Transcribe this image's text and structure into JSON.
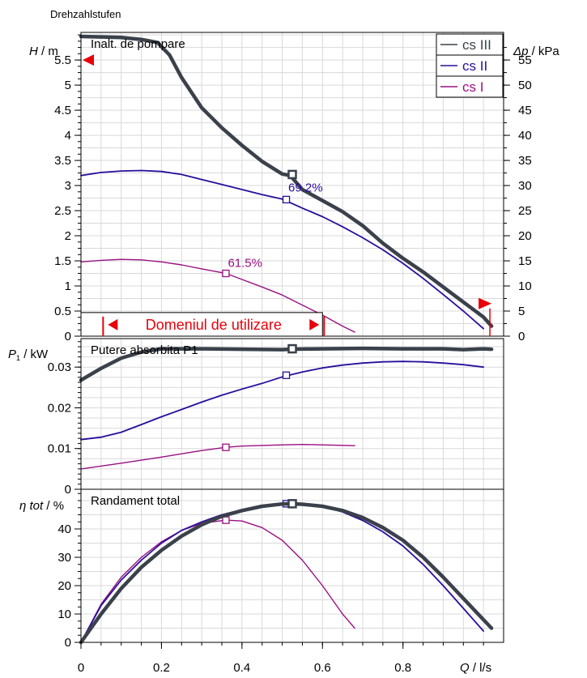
{
  "header": {
    "title": "Drehzahlstufen"
  },
  "colors": {
    "cs3": "#3a414b",
    "cs2": "#2a0e9c",
    "cs1": "#9a1080",
    "red": "#e8000b",
    "grid": "#d9d9d9",
    "axis": "#000000"
  },
  "chart_data": [
    {
      "type": "line",
      "title": "Inalt. de pompare",
      "ylabel_var": "H",
      "ylabel_unit": " / m",
      "y2label_var": "Δp",
      "y2label_unit": " / kPa",
      "xlim": [
        0,
        1.05
      ],
      "ylim": [
        0,
        6.05
      ],
      "y2lim": [
        0,
        60.5
      ],
      "yticks": [
        "0",
        "0.5",
        "1",
        "1.5",
        "2",
        "2.5",
        "3",
        "3.5",
        "4",
        "4.5",
        "5",
        "5.5"
      ],
      "y2ticks": [
        "0",
        "5",
        "10",
        "15",
        "20",
        "25",
        "30",
        "35",
        "40",
        "45",
        "50",
        "55"
      ],
      "legend": [
        "cs III",
        "cs II",
        "cs I"
      ],
      "legend_position": "top-right",
      "series": [
        {
          "name": "cs III",
          "key": "cs3",
          "x": [
            0,
            0.05,
            0.1,
            0.15,
            0.19,
            0.22,
            0.25,
            0.3,
            0.35,
            0.4,
            0.45,
            0.5,
            0.52,
            0.55,
            0.6,
            0.65,
            0.7,
            0.75,
            0.8,
            0.85,
            0.9,
            0.95,
            1.0,
            1.02
          ],
          "y": [
            5.97,
            5.96,
            5.95,
            5.91,
            5.85,
            5.6,
            5.15,
            4.55,
            4.15,
            3.8,
            3.48,
            3.23,
            3.2,
            2.92,
            2.7,
            2.48,
            2.2,
            1.85,
            1.55,
            1.28,
            0.98,
            0.68,
            0.38,
            0.2
          ],
          "marker": [
            0.525,
            3.22
          ],
          "width": 4.5
        },
        {
          "name": "cs II",
          "key": "cs2",
          "x": [
            0,
            0.05,
            0.1,
            0.15,
            0.2,
            0.25,
            0.3,
            0.35,
            0.4,
            0.45,
            0.5,
            0.55,
            0.6,
            0.65,
            0.7,
            0.75,
            0.8,
            0.85,
            0.9,
            0.95,
            1.0
          ],
          "y": [
            3.2,
            3.26,
            3.29,
            3.3,
            3.28,
            3.22,
            3.12,
            3.02,
            2.92,
            2.82,
            2.73,
            2.55,
            2.38,
            2.18,
            1.96,
            1.72,
            1.45,
            1.15,
            0.83,
            0.5,
            0.15
          ],
          "marker": [
            0.51,
            2.72
          ],
          "width": 1.8
        },
        {
          "name": "cs I",
          "key": "cs1",
          "x": [
            0,
            0.05,
            0.1,
            0.15,
            0.2,
            0.25,
            0.3,
            0.36,
            0.4,
            0.45,
            0.5,
            0.55,
            0.6,
            0.65,
            0.68
          ],
          "y": [
            1.48,
            1.51,
            1.53,
            1.52,
            1.48,
            1.42,
            1.34,
            1.25,
            1.13,
            0.98,
            0.82,
            0.62,
            0.42,
            0.2,
            0.08
          ],
          "marker": [
            0.36,
            1.25
          ],
          "width": 1.4
        }
      ],
      "annotations": [
        {
          "text": "69.2%",
          "x": 0.515,
          "y": 2.85,
          "key": "cs2"
        },
        {
          "text": "61.5%",
          "x": 0.365,
          "y": 1.35,
          "key": "cs1"
        }
      ],
      "range_box": {
        "text": "Domeniul de utilizare",
        "x0": 0.055,
        "x1": 0.6,
        "ylo": 0,
        "yhi": 0.47
      },
      "left_marker_y": 5.5,
      "right_marker": {
        "x": 1.02,
        "y": 0.65
      }
    },
    {
      "type": "line",
      "title": "Putere absorbita P1",
      "ylabel_var": "P",
      "ylabel_sub": "1",
      "ylabel_unit": " / kW",
      "xlim": [
        0,
        1.05
      ],
      "ylim": [
        0,
        0.037
      ],
      "yticks": [
        "0",
        "0.01",
        "0.02",
        "0.03"
      ],
      "series": [
        {
          "name": "cs III",
          "key": "cs3",
          "x": [
            0,
            0.05,
            0.1,
            0.15,
            0.2,
            0.3,
            0.4,
            0.5,
            0.52,
            0.6,
            0.7,
            0.8,
            0.9,
            0.95,
            1.0,
            1.02
          ],
          "y": [
            0.0268,
            0.0297,
            0.0322,
            0.0337,
            0.0345,
            0.0345,
            0.0344,
            0.0343,
            0.0344,
            0.0345,
            0.0346,
            0.0345,
            0.0345,
            0.0343,
            0.0345,
            0.0344
          ],
          "marker": [
            0.525,
            0.0345
          ],
          "width": 4.5
        },
        {
          "name": "cs II",
          "key": "cs2",
          "x": [
            0,
            0.05,
            0.1,
            0.15,
            0.2,
            0.25,
            0.3,
            0.35,
            0.4,
            0.45,
            0.5,
            0.55,
            0.6,
            0.65,
            0.7,
            0.75,
            0.8,
            0.85,
            0.9,
            0.95,
            1.0
          ],
          "y": [
            0.0122,
            0.0128,
            0.014,
            0.0159,
            0.0178,
            0.0196,
            0.0214,
            0.0231,
            0.0246,
            0.026,
            0.0276,
            0.0288,
            0.0298,
            0.0305,
            0.031,
            0.0313,
            0.0314,
            0.0313,
            0.031,
            0.0306,
            0.03
          ],
          "marker": [
            0.51,
            0.028
          ],
          "width": 1.8
        },
        {
          "name": "cs I",
          "key": "cs1",
          "x": [
            0,
            0.1,
            0.2,
            0.3,
            0.36,
            0.4,
            0.5,
            0.55,
            0.6,
            0.68
          ],
          "y": [
            0.005,
            0.0064,
            0.0079,
            0.0095,
            0.0103,
            0.0106,
            0.0109,
            0.011,
            0.0109,
            0.0107
          ],
          "marker": [
            0.36,
            0.0103
          ],
          "width": 1.4
        }
      ]
    },
    {
      "type": "line",
      "title": "Randament total",
      "ylabel_var": "η tot",
      "ylabel_unit": " / %",
      "xlim": [
        0,
        1.05
      ],
      "ylim": [
        0,
        54
      ],
      "yticks": [
        "0",
        "10",
        "20",
        "30",
        "40"
      ],
      "xticks": [
        "0",
        "0.2",
        "0.4",
        "0.6",
        "0.8"
      ],
      "xlabel_var": "Q",
      "xlabel_unit": " / l/s",
      "series": [
        {
          "name": "cs III",
          "key": "cs3",
          "x": [
            0,
            0.05,
            0.1,
            0.15,
            0.2,
            0.25,
            0.3,
            0.35,
            0.4,
            0.45,
            0.5,
            0.52,
            0.55,
            0.6,
            0.65,
            0.7,
            0.75,
            0.8,
            0.85,
            0.9,
            0.95,
            1.0,
            1.02
          ],
          "y": [
            0,
            10,
            19,
            26.5,
            32.5,
            37.5,
            41.5,
            44.5,
            46.5,
            48,
            48.8,
            48.9,
            48.7,
            48,
            46.5,
            44,
            40.5,
            36,
            30,
            23,
            15.5,
            8,
            5
          ],
          "marker": [
            0.525,
            48.9
          ],
          "width": 4.5
        },
        {
          "name": "cs II",
          "key": "cs2",
          "x": [
            0,
            0.05,
            0.1,
            0.15,
            0.2,
            0.25,
            0.3,
            0.35,
            0.4,
            0.45,
            0.51,
            0.55,
            0.6,
            0.65,
            0.7,
            0.75,
            0.8,
            0.85,
            0.9,
            0.95,
            1.0
          ],
          "y": [
            0,
            13,
            22,
            29,
            35,
            39.5,
            42.5,
            45,
            46.8,
            48,
            48.9,
            48.8,
            48,
            46,
            43,
            39,
            34,
            27.5,
            20,
            12,
            4
          ],
          "marker": [
            0.51,
            48.9
          ],
          "width": 1.8
        },
        {
          "name": "cs I",
          "key": "cs1",
          "x": [
            0,
            0.05,
            0.1,
            0.15,
            0.2,
            0.25,
            0.3,
            0.36,
            0.4,
            0.45,
            0.5,
            0.55,
            0.6,
            0.65,
            0.68
          ],
          "y": [
            0,
            13.5,
            23,
            30,
            35.5,
            39.5,
            42,
            43.1,
            42.8,
            40.5,
            36,
            29,
            20,
            10,
            5
          ],
          "marker": [
            0.36,
            43.1
          ],
          "width": 1.4
        }
      ]
    }
  ]
}
